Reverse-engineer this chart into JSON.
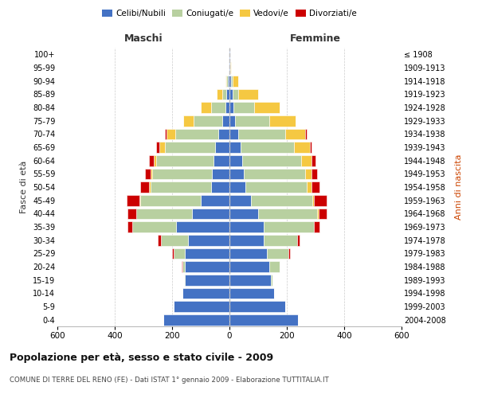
{
  "age_groups": [
    "0-4",
    "5-9",
    "10-14",
    "15-19",
    "20-24",
    "25-29",
    "30-34",
    "35-39",
    "40-44",
    "45-49",
    "50-54",
    "55-59",
    "60-64",
    "65-69",
    "70-74",
    "75-79",
    "80-84",
    "85-89",
    "90-94",
    "95-99",
    "100+"
  ],
  "birth_years": [
    "2004-2008",
    "1999-2003",
    "1994-1998",
    "1989-1993",
    "1984-1988",
    "1979-1983",
    "1974-1978",
    "1969-1973",
    "1964-1968",
    "1959-1963",
    "1954-1958",
    "1949-1953",
    "1944-1948",
    "1939-1943",
    "1934-1938",
    "1929-1933",
    "1924-1928",
    "1919-1923",
    "1914-1918",
    "1909-1913",
    "≤ 1908"
  ],
  "colors": {
    "celibi": "#4472c4",
    "coniugati": "#b8d0a0",
    "vedovi": "#f5c842",
    "divorziati": "#cc0000"
  },
  "maschi": {
    "celibi": [
      230,
      195,
      165,
      155,
      155,
      155,
      145,
      185,
      130,
      100,
      65,
      60,
      55,
      50,
      40,
      25,
      15,
      10,
      5,
      3,
      2
    ],
    "coniugati": [
      0,
      0,
      0,
      3,
      10,
      40,
      95,
      155,
      195,
      210,
      210,
      210,
      200,
      175,
      150,
      100,
      50,
      15,
      5,
      0,
      0
    ],
    "vedovi": [
      0,
      0,
      0,
      0,
      0,
      0,
      0,
      0,
      0,
      3,
      5,
      5,
      10,
      20,
      30,
      35,
      35,
      20,
      5,
      0,
      0
    ],
    "divorziati": [
      0,
      0,
      0,
      0,
      2,
      5,
      10,
      15,
      30,
      45,
      30,
      20,
      15,
      10,
      5,
      0,
      0,
      0,
      0,
      0,
      0
    ]
  },
  "femmine": {
    "celibi": [
      240,
      195,
      155,
      145,
      140,
      130,
      120,
      120,
      100,
      75,
      55,
      50,
      45,
      40,
      30,
      20,
      15,
      10,
      5,
      3,
      2
    ],
    "coniugati": [
      0,
      0,
      0,
      5,
      35,
      75,
      115,
      175,
      205,
      215,
      215,
      215,
      205,
      185,
      165,
      120,
      70,
      20,
      5,
      0,
      0
    ],
    "vedovi": [
      0,
      0,
      0,
      0,
      0,
      0,
      0,
      0,
      5,
      5,
      15,
      20,
      35,
      55,
      70,
      90,
      90,
      70,
      20,
      2,
      0
    ],
    "divorziati": [
      0,
      0,
      0,
      0,
      0,
      5,
      10,
      20,
      30,
      45,
      30,
      20,
      15,
      5,
      5,
      0,
      0,
      0,
      0,
      0,
      0
    ]
  },
  "xlim": 600,
  "title": "Popolazione per età, sesso e stato civile - 2009",
  "subtitle": "COMUNE DI TERRE DEL RENO (FE) - Dati ISTAT 1° gennaio 2009 - Elaborazione TUTTITALIA.IT",
  "ylabel_left": "Fasce di età",
  "ylabel_right": "Anni di nascita",
  "xlabel_left": "Maschi",
  "xlabel_right": "Femmine",
  "background_color": "#ffffff",
  "grid_color": "#cccccc"
}
